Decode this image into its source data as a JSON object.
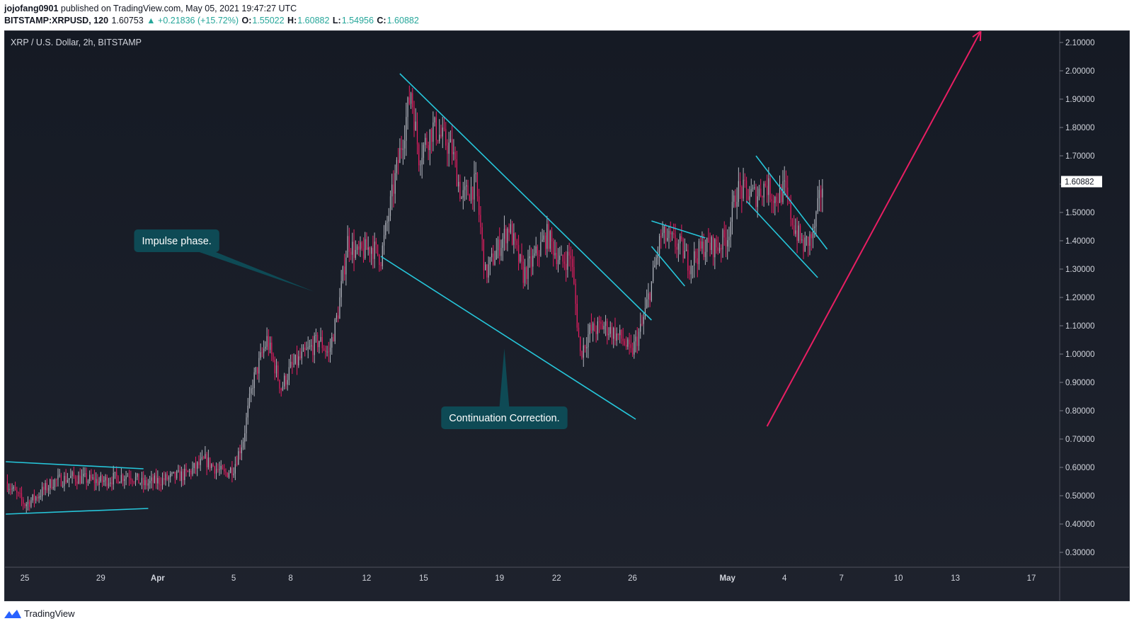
{
  "header": {
    "publisher": "jojofang0901",
    "published_text": "published on TradingView.com, May 05, 2021 19:47:27 UTC",
    "symbol": "BITSTAMP:XRPUSD, 120",
    "last": "1.60753",
    "change": "▲ +0.21836 (+15.72%)",
    "o_label": "O:",
    "o_value": "1.55022",
    "h_label": "H:",
    "h_value": "1.60882",
    "l_label": "L:",
    "l_value": "1.54956",
    "c_label": "C:",
    "c_value": "1.60882"
  },
  "footer": {
    "brand": "TradingView"
  },
  "colors": {
    "background_top": "#151a24",
    "background_bottom": "#1e222d",
    "up_candle": "#b2b5be",
    "down_candle": "#e91e63",
    "trendline": "#26c6da",
    "projection": "#e91e63",
    "callout": "#0e4a55",
    "price_tag_bg": "#ffffff"
  },
  "chart_data": {
    "type": "candlestick",
    "title": "XRP / U.S. Dollar, 2h, BITSTAMP",
    "xlabel": "",
    "ylabel": "",
    "ylim": [
      0.25,
      2.14
    ],
    "y_ticks": [
      "2.10000",
      "2.00000",
      "1.90000",
      "1.80000",
      "1.70000",
      "1.60000",
      "1.50000",
      "1.40000",
      "1.30000",
      "1.20000",
      "1.10000",
      "1.00000",
      "0.90000",
      "0.80000",
      "0.70000",
      "0.60000",
      "0.50000",
      "0.40000",
      "0.30000"
    ],
    "x_range": [
      "2021-03-24",
      "2021-05-20"
    ],
    "x_ticks": [
      {
        "date": "2021-03-25",
        "label": "25"
      },
      {
        "date": "2021-03-29",
        "label": "29"
      },
      {
        "date": "2021-04-01",
        "label": "Apr"
      },
      {
        "date": "2021-04-05",
        "label": "5"
      },
      {
        "date": "2021-04-08",
        "label": "8"
      },
      {
        "date": "2021-04-12",
        "label": "12"
      },
      {
        "date": "2021-04-15",
        "label": "15"
      },
      {
        "date": "2021-04-19",
        "label": "19"
      },
      {
        "date": "2021-04-22",
        "label": "22"
      },
      {
        "date": "2021-04-26",
        "label": "26"
      },
      {
        "date": "2021-05-01",
        "label": "May"
      },
      {
        "date": "2021-05-04",
        "label": "4"
      },
      {
        "date": "2021-05-07",
        "label": "7"
      },
      {
        "date": "2021-05-10",
        "label": "10"
      },
      {
        "date": "2021-05-13",
        "label": "13"
      },
      {
        "date": "2021-05-17",
        "label": "17"
      }
    ],
    "price_path": [
      {
        "date": "2021-03-24T00:00",
        "close": 0.55
      },
      {
        "date": "2021-03-25T00:00",
        "close": 0.47
      },
      {
        "date": "2021-03-25T12:00",
        "close": 0.49
      },
      {
        "date": "2021-03-26T12:00",
        "close": 0.55
      },
      {
        "date": "2021-03-27T12:00",
        "close": 0.565
      },
      {
        "date": "2021-03-29T00:00",
        "close": 0.55
      },
      {
        "date": "2021-03-30T12:00",
        "close": 0.575
      },
      {
        "date": "2021-03-31T06:00",
        "close": 0.54
      },
      {
        "date": "2021-04-01T12:00",
        "close": 0.56
      },
      {
        "date": "2021-04-02T12:00",
        "close": 0.575
      },
      {
        "date": "2021-04-03T12:00",
        "close": 0.625
      },
      {
        "date": "2021-04-04T12:00",
        "close": 0.575
      },
      {
        "date": "2021-04-05T00:00",
        "close": 0.6
      },
      {
        "date": "2021-04-05T12:00",
        "close": 0.7
      },
      {
        "date": "2021-04-06T00:00",
        "close": 0.9
      },
      {
        "date": "2021-04-06T18:00",
        "close": 1.05
      },
      {
        "date": "2021-04-07T12:00",
        "close": 0.88
      },
      {
        "date": "2021-04-08T00:00",
        "close": 0.95
      },
      {
        "date": "2021-04-08T18:00",
        "close": 1.0
      },
      {
        "date": "2021-04-09T12:00",
        "close": 1.05
      },
      {
        "date": "2021-04-10T00:00",
        "close": 1.0
      },
      {
        "date": "2021-04-10T12:00",
        "close": 1.15
      },
      {
        "date": "2021-04-11T00:00",
        "close": 1.4
      },
      {
        "date": "2021-04-11T12:00",
        "close": 1.35
      },
      {
        "date": "2021-04-12T06:00",
        "close": 1.38
      },
      {
        "date": "2021-04-12T18:00",
        "close": 1.34
      },
      {
        "date": "2021-04-13T12:00",
        "close": 1.62
      },
      {
        "date": "2021-04-14T00:00",
        "close": 1.8
      },
      {
        "date": "2021-04-14T08:00",
        "close": 1.93
      },
      {
        "date": "2021-04-14T18:00",
        "close": 1.7
      },
      {
        "date": "2021-04-15T12:00",
        "close": 1.8
      },
      {
        "date": "2021-04-16T12:00",
        "close": 1.72
      },
      {
        "date": "2021-04-17T00:00",
        "close": 1.55
      },
      {
        "date": "2021-04-17T18:00",
        "close": 1.6
      },
      {
        "date": "2021-04-18T06:00",
        "close": 1.28
      },
      {
        "date": "2021-04-18T18:00",
        "close": 1.35
      },
      {
        "date": "2021-04-19T12:00",
        "close": 1.45
      },
      {
        "date": "2021-04-20T06:00",
        "close": 1.28
      },
      {
        "date": "2021-04-20T18:00",
        "close": 1.33
      },
      {
        "date": "2021-04-21T12:00",
        "close": 1.42
      },
      {
        "date": "2021-04-22T06:00",
        "close": 1.32
      },
      {
        "date": "2021-04-22T18:00",
        "close": 1.35
      },
      {
        "date": "2021-04-23T06:00",
        "close": 1.0
      },
      {
        "date": "2021-04-23T18:00",
        "close": 1.08
      },
      {
        "date": "2021-04-24T12:00",
        "close": 1.1
      },
      {
        "date": "2021-04-25T12:00",
        "close": 1.05
      },
      {
        "date": "2021-04-25T22:00",
        "close": 1.0
      },
      {
        "date": "2021-04-26T12:00",
        "close": 1.1
      },
      {
        "date": "2021-04-27T00:00",
        "close": 1.25
      },
      {
        "date": "2021-04-27T12:00",
        "close": 1.42
      },
      {
        "date": "2021-04-28T12:00",
        "close": 1.38
      },
      {
        "date": "2021-04-29T00:00",
        "close": 1.32
      },
      {
        "date": "2021-04-29T18:00",
        "close": 1.38
      },
      {
        "date": "2021-04-30T12:00",
        "close": 1.38
      },
      {
        "date": "2021-05-01T00:00",
        "close": 1.42
      },
      {
        "date": "2021-05-01T12:00",
        "close": 1.58
      },
      {
        "date": "2021-05-02T12:00",
        "close": 1.56
      },
      {
        "date": "2021-05-03T00:00",
        "close": 1.6
      },
      {
        "date": "2021-05-03T12:00",
        "close": 1.55
      },
      {
        "date": "2021-05-04T00:00",
        "close": 1.58
      },
      {
        "date": "2021-05-04T12:00",
        "close": 1.45
      },
      {
        "date": "2021-05-05T00:00",
        "close": 1.38
      },
      {
        "date": "2021-05-05T12:00",
        "close": 1.42
      },
      {
        "date": "2021-05-06T00:00",
        "close": 1.6
      }
    ],
    "last_price_tag": "1.60882",
    "trendlines": [
      {
        "from": [
          "2021-03-24T00:00",
          0.62
        ],
        "to": [
          "2021-03-31T06:00",
          0.595
        ]
      },
      {
        "from": [
          "2021-03-24T00:00",
          0.435
        ],
        "to": [
          "2021-03-31T12:00",
          0.455
        ]
      },
      {
        "from": [
          "2021-04-12T18:00",
          1.345
        ],
        "to": [
          "2021-04-26T04:00",
          0.77
        ]
      },
      {
        "from": [
          "2021-04-13T18:00",
          1.99
        ],
        "to": [
          "2021-04-27T00:00",
          1.12
        ]
      },
      {
        "from": [
          "2021-04-27T00:00",
          1.47
        ],
        "to": [
          "2021-04-29T20:00",
          1.41
        ]
      },
      {
        "from": [
          "2021-04-27T00:00",
          1.38
        ],
        "to": [
          "2021-04-28T18:00",
          1.24
        ]
      },
      {
        "from": [
          "2021-05-02T12:00",
          1.7
        ],
        "to": [
          "2021-05-06T06:00",
          1.37
        ]
      },
      {
        "from": [
          "2021-05-02T00:00",
          1.54
        ],
        "to": [
          "2021-05-05T18:00",
          1.27
        ]
      }
    ],
    "projection_arrow": {
      "from": [
        "2021-05-03T02:00",
        0.745
      ],
      "to": [
        "2021-05-14T08:00",
        2.14
      ]
    },
    "annotations": [
      {
        "text": "Impulse phase.",
        "box_at": [
          "2021-04-02T00:00",
          1.4
        ],
        "pointer_to": [
          "2021-04-09T06:00",
          1.22
        ]
      },
      {
        "text": "Continuation Correction.",
        "box_at": [
          "2021-04-19T06:00",
          0.775
        ],
        "pointer_to": [
          "2021-04-19T06:00",
          1.02
        ]
      }
    ]
  }
}
